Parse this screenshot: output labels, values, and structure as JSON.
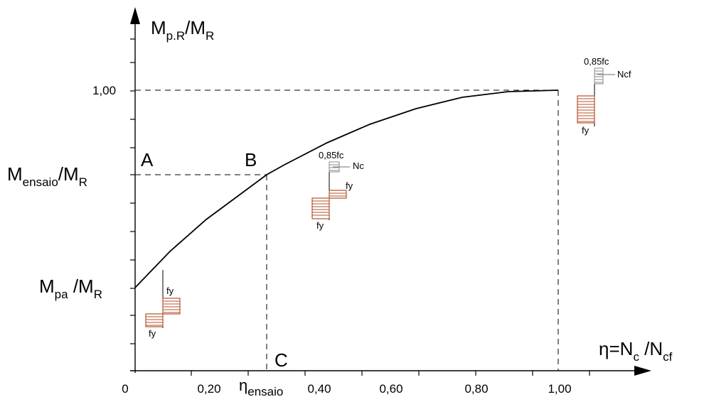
{
  "axes": {
    "y_label_main": "M",
    "y_label_sub": "p.R",
    "y_label_div": "/M",
    "y_label_sub2": "R",
    "x_label_eta": "η",
    "x_label_eq": "=N",
    "x_label_sub": "c",
    "x_label_div": " /N",
    "x_label_sub2": "cf"
  },
  "x_ticks": [
    "0",
    "0,20",
    "0,40",
    "0,60",
    "0,80",
    "1,00"
  ],
  "x_eta_ensaio_main": "η",
  "x_eta_ensaio_sub": "ensaio",
  "y_tick_1": "1,00",
  "left_labels": {
    "m_ensaio_main": "M",
    "m_ensaio_sub": "ensaio",
    "m_ensaio_div": "/M",
    "m_ensaio_sub2": "R",
    "m_pa_main": "M",
    "m_pa_sub": "pa",
    "m_pa_div": " /M",
    "m_pa_sub2": "R"
  },
  "points": {
    "A": "A",
    "B": "B",
    "C": "C"
  },
  "stress_blocks": {
    "block1": {
      "top_label": "fy",
      "bottom_label": "fy"
    },
    "block2": {
      "top_label": "0,85fc",
      "force_label": "Nc",
      "mid_label": "fy",
      "bottom_label": "fy"
    },
    "block3": {
      "top_label": "0,85fc",
      "force_label": "Ncf",
      "bottom_label": "fy"
    }
  },
  "colors": {
    "steel": "#b5522b",
    "concrete": "#8a8a8a"
  },
  "chart_data": {
    "type": "line",
    "xlim": [
      0,
      1.2
    ],
    "ylim": [
      0,
      1.3
    ],
    "series": [
      {
        "x": [
          0,
          0.1,
          0.2,
          0.3,
          0.4,
          0.5,
          0.6,
          0.7,
          0.8,
          0.9,
          1.0
        ],
        "y": [
          0.3,
          0.42,
          0.53,
          0.63,
          0.72,
          0.8,
          0.86,
          0.91,
          0.95,
          0.98,
          1.0
        ]
      }
    ],
    "x_tick_labels": [
      "0",
      "0,20",
      "0,40",
      "0,60",
      "0,80",
      "1,00"
    ],
    "y_tick_labels": [
      "1,00"
    ],
    "grid": false
  }
}
